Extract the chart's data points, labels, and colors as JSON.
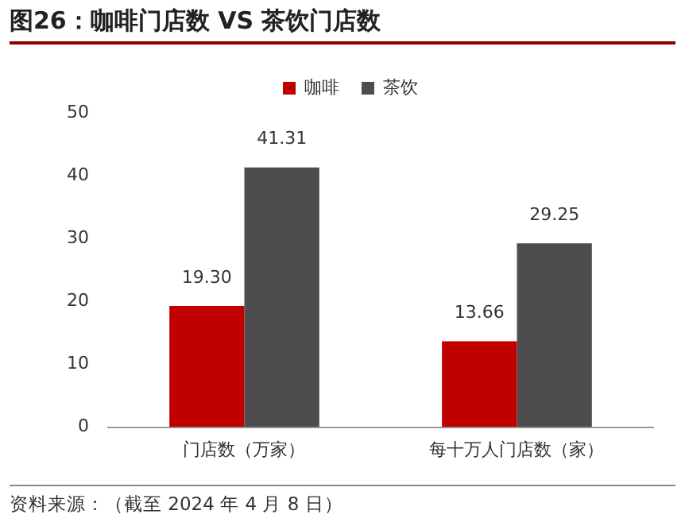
{
  "chart_data": {
    "type": "bar",
    "title": "图26：咖啡门店数 VS 茶饮门店数",
    "categories": [
      "门店数（万家）",
      "每十万人门店数（家）"
    ],
    "series": [
      {
        "name": "咖啡",
        "color": "#c00000",
        "values": [
          19.3,
          13.66
        ],
        "value_labels": [
          "19.30",
          "13.66"
        ]
      },
      {
        "name": "茶饮",
        "color": "#4d4d4f",
        "values": [
          41.31,
          29.25
        ],
        "value_labels": [
          "41.31",
          "29.25"
        ]
      }
    ],
    "ylim": [
      0,
      50
    ],
    "yticks": [
      0,
      10,
      20,
      30,
      40,
      50
    ],
    "grid": false,
    "legend": "top",
    "annotations": [
      "资料来源：（截至 2024 年 4 月 8 日）"
    ]
  }
}
